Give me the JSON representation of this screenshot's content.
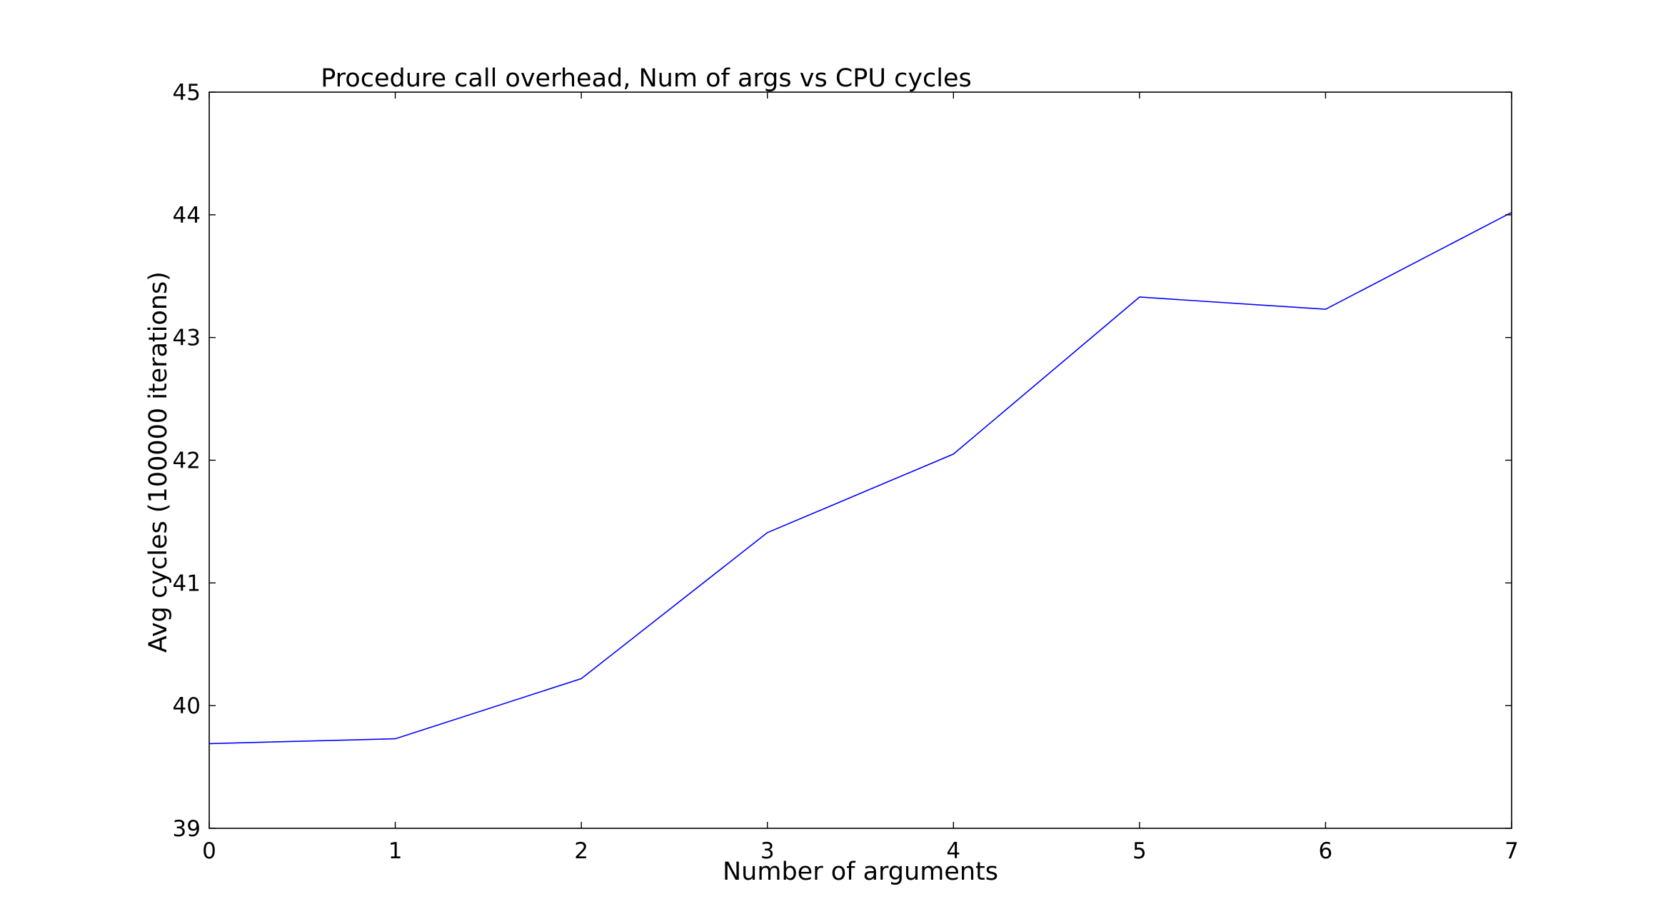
{
  "chart_data": {
    "type": "line",
    "title": "Procedure call overhead, Num of args vs CPU cycles",
    "xlabel": "Number of arguments",
    "ylabel": "Avg cycles (100000 iterations)",
    "xlim": [
      0,
      7
    ],
    "ylim": [
      39,
      45
    ],
    "xticks": [
      "0",
      "1",
      "2",
      "3",
      "4",
      "5",
      "6",
      "7"
    ],
    "yticks": [
      "39",
      "40",
      "41",
      "42",
      "43",
      "44",
      "45"
    ],
    "grid": false,
    "series": [
      {
        "color": "#0000ff",
        "x": [
          0,
          1,
          2,
          3,
          4,
          5,
          6,
          7
        ],
        "values": [
          39.69,
          39.73,
          40.22,
          41.41,
          42.05,
          43.33,
          43.23,
          44.02
        ]
      }
    ]
  }
}
